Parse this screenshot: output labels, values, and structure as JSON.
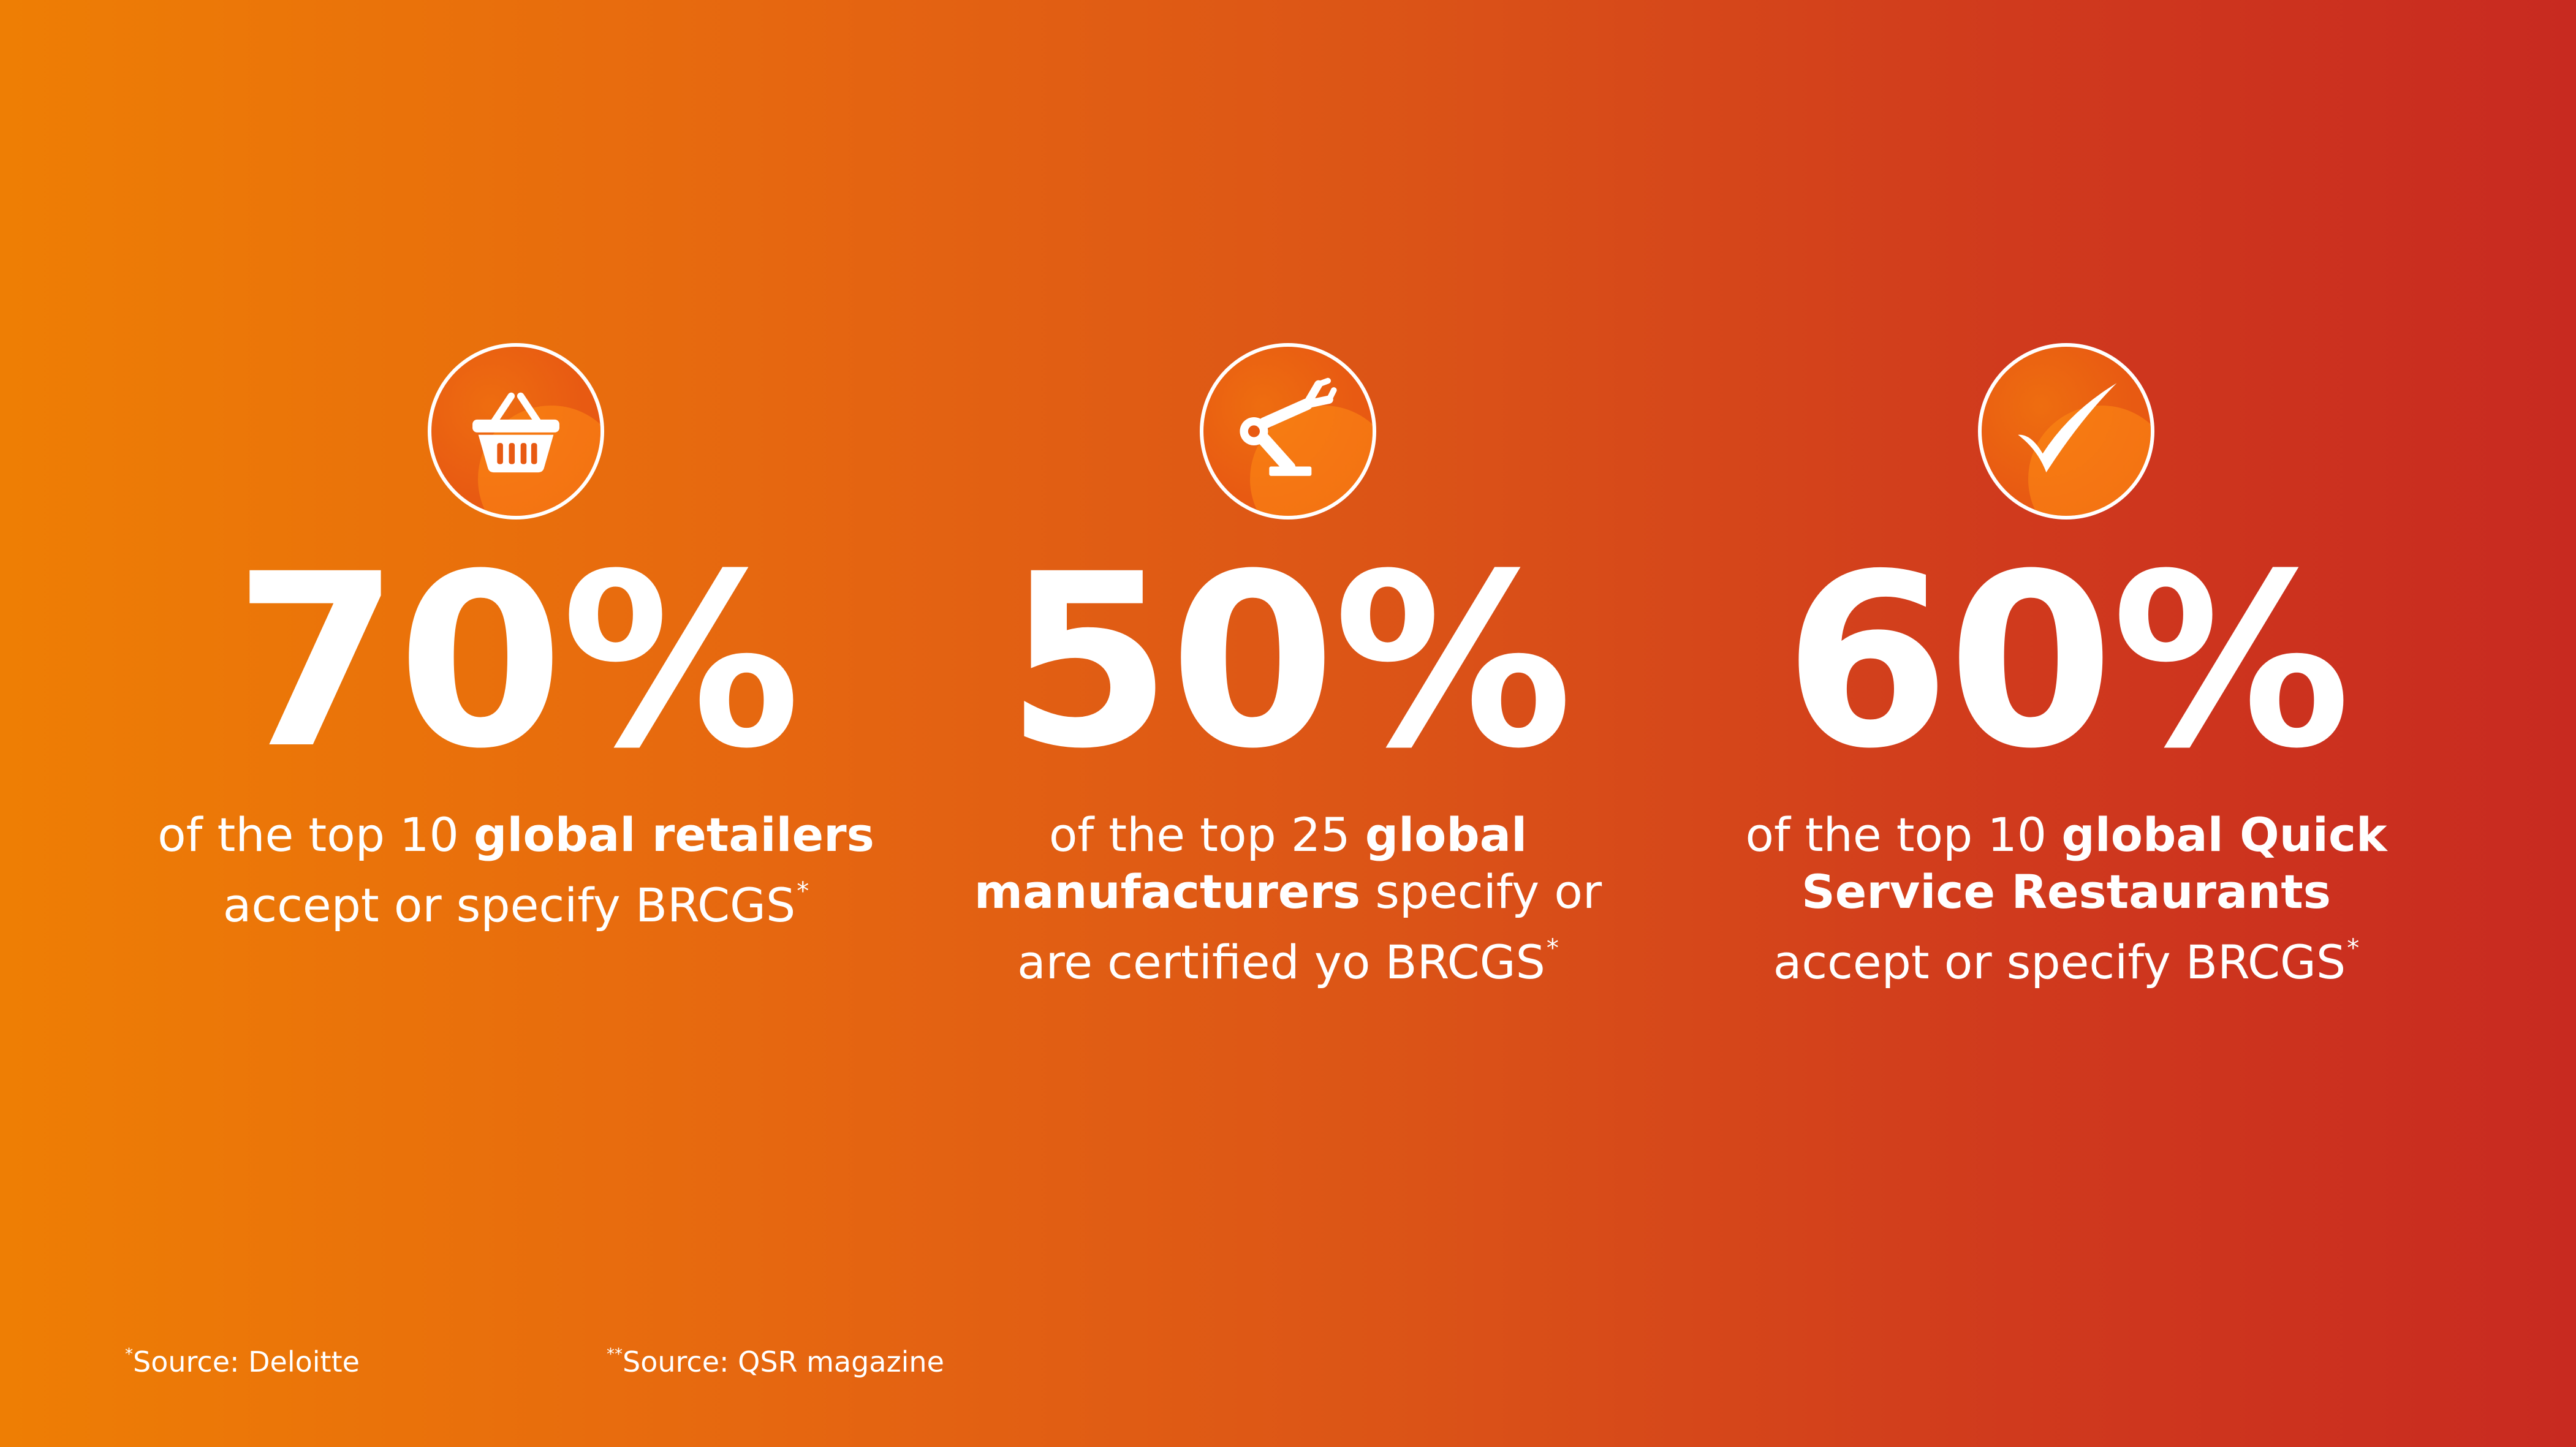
{
  "stats": [
    {
      "icon": "shopping-basket-icon",
      "value": "70%",
      "caption": {
        "line1_pre": "of the top 10 ",
        "line1_bold": "global retailers",
        "line2": "accept or specify BRCGS",
        "mark": "*"
      }
    },
    {
      "icon": "robotic-arm-icon",
      "value": "50%",
      "caption": {
        "line1_pre": "of the top 25 ",
        "line1_bold": "global",
        "line2_bold": "manufacturers",
        "line2_post": " specify or",
        "line3": "are certified yo BRCGS",
        "mark": "*"
      }
    },
    {
      "icon": "checkmark-icon",
      "value": "60%",
      "caption": {
        "line1_pre": "of the top 10 ",
        "line1_bold": "global Quick",
        "line2_bold": "Service Restaurants",
        "line3": "accept or specify BRCGS",
        "mark": "*"
      }
    }
  ],
  "footnotes": [
    {
      "mark": "*",
      "text": "Source: Deloitte"
    },
    {
      "mark": "**",
      "text": "Source: QSR magazine"
    }
  ],
  "colors": {
    "gradient_start": "#ee7e04",
    "gradient_end": "#c82a20",
    "text": "#ffffff"
  }
}
